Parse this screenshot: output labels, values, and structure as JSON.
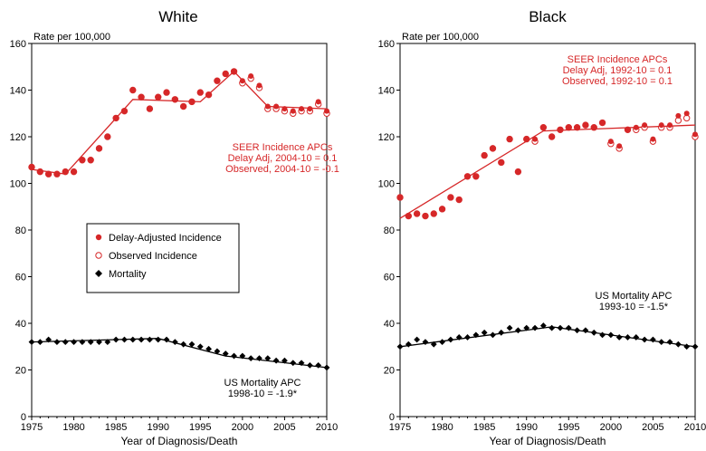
{
  "chart_data": [
    {
      "type": "scatter",
      "title": "White",
      "ylabel": "Rate per 100,000",
      "xlabel": "Year of Diagnosis/Death",
      "xlim": [
        1975,
        2010
      ],
      "ylim": [
        0,
        160
      ],
      "x_ticks": [
        1975,
        1980,
        1985,
        1990,
        1995,
        2000,
        2005,
        2010
      ],
      "y_ticks": [
        0,
        20,
        40,
        60,
        80,
        100,
        120,
        140,
        160
      ],
      "grid": false,
      "legend": {
        "position": "center-left",
        "entries": [
          "Delay-Adjusted Incidence",
          "Observed Incidence",
          "Mortality"
        ]
      },
      "annotations": {
        "incidence": [
          "SEER Incidence APCs",
          "Delay Adj, 2004-10 = 0.1",
          "Observed, 2004-10 = -0.1"
        ],
        "mortality": [
          "US Mortality APC",
          "1998-10 = -1.9*"
        ]
      },
      "colors": {
        "incidence": "#d62728",
        "mortality": "#000000"
      },
      "x": [
        1975,
        1976,
        1977,
        1978,
        1979,
        1980,
        1981,
        1982,
        1983,
        1984,
        1985,
        1986,
        1987,
        1988,
        1989,
        1990,
        1991,
        1992,
        1993,
        1994,
        1995,
        1996,
        1997,
        1998,
        1999,
        2000,
        2001,
        2002,
        2003,
        2004,
        2005,
        2006,
        2007,
        2008,
        2009,
        2010
      ],
      "series": [
        {
          "name": "Delay-Adjusted Incidence",
          "style": "filled",
          "values": [
            107,
            105,
            104,
            104,
            105,
            105,
            110,
            110,
            115,
            120,
            128,
            131,
            140,
            137,
            132,
            137,
            139,
            136,
            133,
            135,
            139,
            138,
            144,
            147,
            148,
            144,
            146,
            142,
            133,
            133,
            132,
            131,
            132,
            132,
            135,
            131
          ]
        },
        {
          "name": "Observed Incidence",
          "style": "open",
          "values": [
            107,
            105,
            104,
            104,
            105,
            105,
            110,
            110,
            115,
            120,
            128,
            131,
            140,
            137,
            132,
            137,
            139,
            136,
            133,
            135,
            139,
            138,
            144,
            147,
            148,
            143,
            145,
            141,
            132,
            132,
            131,
            130,
            131,
            131,
            134,
            130
          ]
        },
        {
          "name": "Mortality",
          "style": "diamond",
          "values": [
            32,
            32,
            33,
            32,
            32,
            32,
            32,
            32,
            32,
            32,
            33,
            33,
            33,
            33,
            33,
            33,
            33,
            32,
            31,
            31,
            30,
            29,
            28,
            27,
            26,
            26,
            25,
            25,
            25,
            24,
            24,
            23,
            23,
            22,
            22,
            21
          ]
        }
      ],
      "fit_lines": [
        {
          "series": "Incidence",
          "x": [
            1975,
            1979,
            1987,
            1995,
            1999,
            2003,
            2010
          ],
          "y": [
            106,
            104,
            136,
            135,
            148,
            133,
            132
          ]
        },
        {
          "series": "Mortality",
          "x": [
            1975,
            1990,
            1998,
            2010
          ],
          "y": [
            32,
            33.5,
            26,
            21
          ]
        }
      ]
    },
    {
      "type": "scatter",
      "title": "Black",
      "ylabel": "Rate per 100,000",
      "xlabel": "Year of Diagnosis/Death",
      "xlim": [
        1975,
        2010
      ],
      "ylim": [
        0,
        160
      ],
      "x_ticks": [
        1975,
        1980,
        1985,
        1990,
        1995,
        2000,
        2005,
        2010
      ],
      "y_ticks": [
        0,
        20,
        40,
        60,
        80,
        100,
        120,
        140,
        160
      ],
      "grid": false,
      "annotations": {
        "incidence": [
          "SEER Incidence APCs",
          "Delay Adj, 1992-10 = 0.1",
          "Observed, 1992-10 = 0.1"
        ],
        "mortality": [
          "US Mortality APC",
          "1993-10 = -1.5*"
        ]
      },
      "colors": {
        "incidence": "#d62728",
        "mortality": "#000000"
      },
      "x": [
        1975,
        1976,
        1977,
        1978,
        1979,
        1980,
        1981,
        1982,
        1983,
        1984,
        1985,
        1986,
        1987,
        1988,
        1989,
        1990,
        1991,
        1992,
        1993,
        1994,
        1995,
        1996,
        1997,
        1998,
        1999,
        2000,
        2001,
        2002,
        2003,
        2004,
        2005,
        2006,
        2007,
        2008,
        2009,
        2010
      ],
      "series": [
        {
          "name": "Delay-Adjusted Incidence",
          "style": "filled",
          "values": [
            94,
            86,
            87,
            86,
            87,
            89,
            94,
            93,
            103,
            103,
            112,
            115,
            109,
            119,
            105,
            119,
            119,
            124,
            120,
            123,
            124,
            124,
            125,
            124,
            126,
            118,
            116,
            123,
            124,
            125,
            119,
            125,
            125,
            129,
            130,
            121
          ]
        },
        {
          "name": "Observed Incidence",
          "style": "open",
          "values": [
            94,
            86,
            87,
            86,
            87,
            89,
            94,
            93,
            103,
            103,
            112,
            115,
            109,
            119,
            105,
            119,
            118,
            124,
            120,
            123,
            124,
            124,
            125,
            124,
            126,
            117,
            115,
            123,
            123,
            124,
            118,
            124,
            124,
            127,
            128,
            120
          ]
        },
        {
          "name": "Mortality",
          "style": "diamond",
          "values": [
            30,
            31,
            33,
            32,
            31,
            32,
            33,
            34,
            34,
            35,
            36,
            35,
            36,
            38,
            37,
            38,
            38,
            39,
            38,
            38,
            38,
            37,
            37,
            36,
            35,
            35,
            34,
            34,
            34,
            33,
            33,
            32,
            32,
            31,
            30,
            30
          ]
        }
      ],
      "fit_lines": [
        {
          "series": "Incidence",
          "x": [
            1975,
            1992,
            2010
          ],
          "y": [
            85,
            122.5,
            125
          ]
        },
        {
          "series": "Mortality",
          "x": [
            1975,
            1993,
            2010
          ],
          "y": [
            30,
            38.5,
            30
          ]
        }
      ]
    }
  ]
}
